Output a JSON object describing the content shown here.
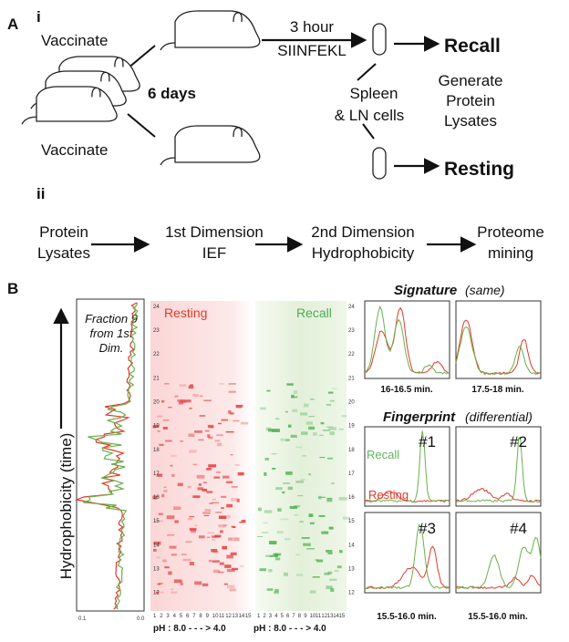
{
  "panel_a": {
    "label": "A",
    "part_i": "i",
    "vaccinate_top": "Vaccinate",
    "vaccinate_bottom": "Vaccinate",
    "days": "6  days",
    "stim_line1": "3 hour",
    "stim_line2": "SIINFEKL",
    "recall": "Recall",
    "resting": "Resting",
    "cells_line1": "Spleen",
    "cells_line2": "& LN cells",
    "lysate_lines": [
      "Generate",
      "Protein",
      "Lysates"
    ],
    "part_ii": "ii",
    "workflow": [
      [
        "Protein",
        "Lysates"
      ],
      [
        "1st Dimension",
        "IEF"
      ],
      [
        "2nd Dimension",
        "Hydrophobicity"
      ],
      [
        "Proteome",
        "mining"
      ]
    ]
  },
  "panel_b": {
    "label": "B",
    "fraction_lines": [
      "Fraction 9",
      "from 1st",
      "Dim."
    ],
    "axis_label": "Hydrophobicity (time)",
    "chrom_ticks": [
      "0.1",
      "0.0"
    ],
    "gel_resting": "Resting",
    "gel_recall": "Recall",
    "gel_y_labels": [
      24,
      23,
      22,
      21,
      20,
      19,
      18,
      17,
      16,
      15,
      14,
      13,
      12
    ],
    "lanes": [
      1,
      2,
      3,
      4,
      5,
      6,
      7,
      8,
      9,
      10,
      11,
      12,
      13,
      14,
      15
    ],
    "ph_label": "pH :  8.0 - - - > 4.0",
    "signature_title": "Signature",
    "signature_note": "(same)",
    "signature_ranges": [
      "16-16.5 min.",
      "17.5-18 min."
    ],
    "fingerprint_title": "Fingerprint",
    "fingerprint_note": "(differential)",
    "fingerprint_ids": [
      "#1",
      "#2",
      "#3",
      "#4"
    ],
    "legend_recall": "Recall",
    "legend_resting": "Resting",
    "fingerprint_ranges": [
      "15.5-16.0 min.",
      "15.5-16.0 min."
    ]
  }
}
